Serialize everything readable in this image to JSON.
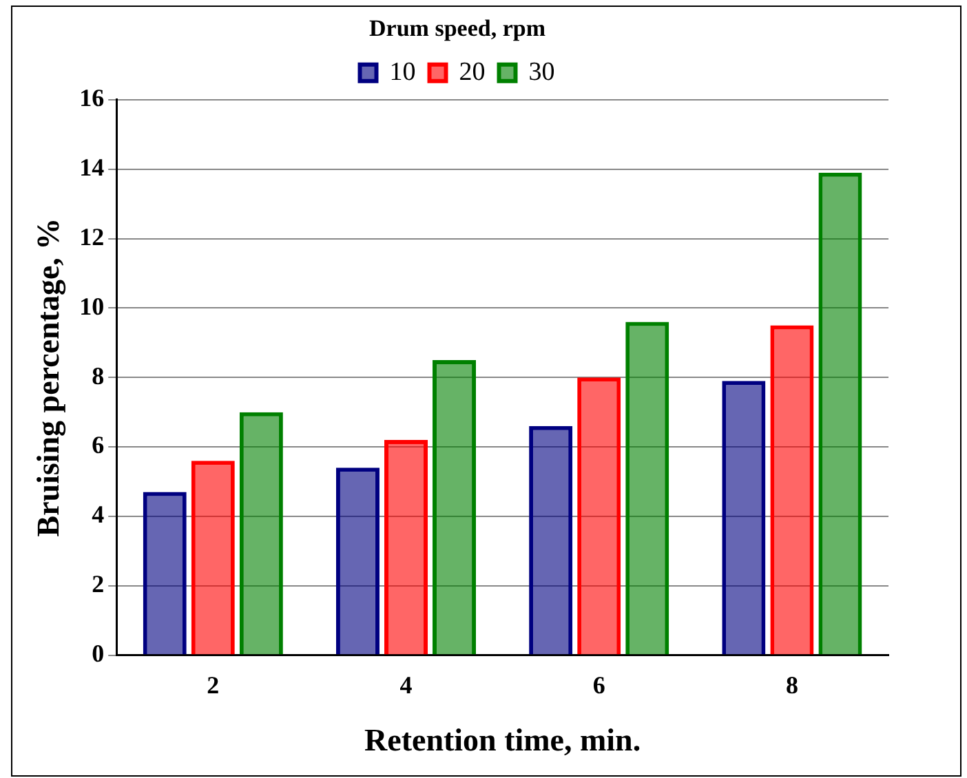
{
  "chart_data": {
    "type": "bar",
    "xlabel": "Retention time, min.",
    "ylabel": "Bruising percentage, %",
    "legend_title": "Drum speed, rpm",
    "legend": "top",
    "grid": "y",
    "categories": [
      "2",
      "4",
      "6",
      "8"
    ],
    "series": [
      {
        "name": "10",
        "color": "#000080",
        "values": [
          4.7,
          5.4,
          6.6,
          7.9
        ]
      },
      {
        "name": "20",
        "color": "#ff0000",
        "values": [
          5.6,
          6.2,
          8.0,
          9.5
        ]
      },
      {
        "name": "30",
        "color": "#008000",
        "values": [
          7.0,
          8.5,
          9.6,
          13.9
        ]
      }
    ],
    "ylim": [
      0,
      16
    ],
    "yticks": [
      0,
      2,
      4,
      6,
      8,
      10,
      12,
      14,
      16
    ]
  }
}
